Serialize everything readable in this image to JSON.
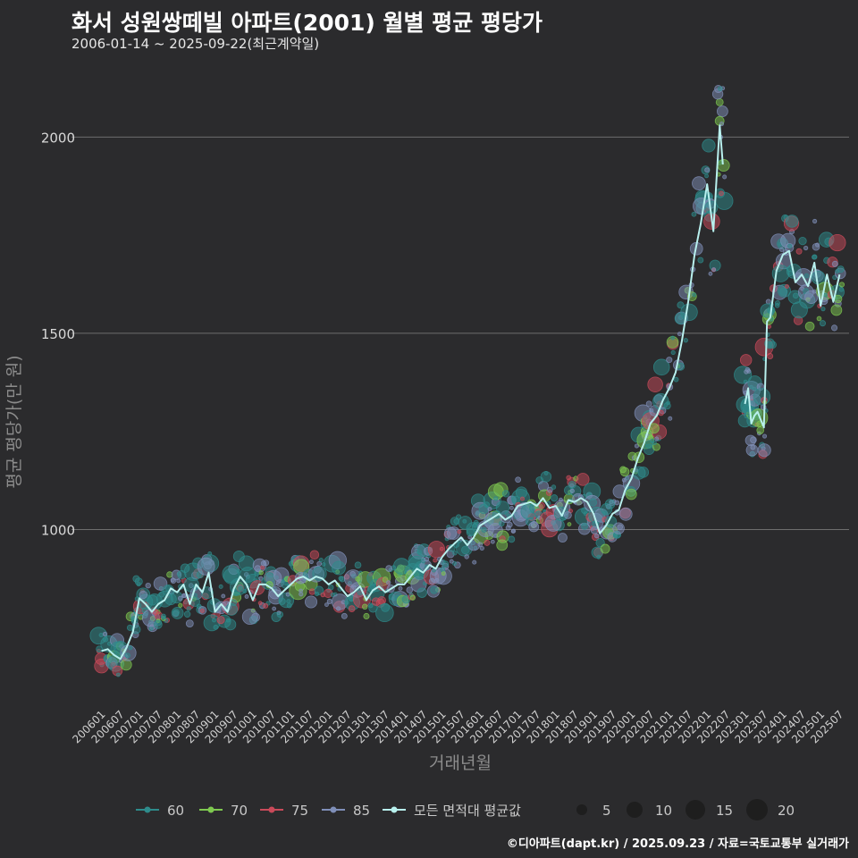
{
  "title": "화서 성원쌍떼빌 아파트(2001) 월별 평균 평당가",
  "subtitle": "2006-01-14 ~ 2025-09-22(최근계약일)",
  "footer": "©디아파트(dapt.kr) / 2025.09.23 / 자료=국토교통부 실거래가",
  "colors": {
    "s60": "#2e8b8b",
    "s70": "#7ec850",
    "s75": "#c94a5a",
    "s85": "#7f8fb8",
    "avg": "#b8f0ee"
  },
  "chart_data": {
    "type": "scatter",
    "xlabel": "거래년월",
    "ylabel": "평균 평당가(만 원)",
    "ylim": [
      550,
      2190
    ],
    "yticks": [
      1000,
      1500,
      2000
    ],
    "xlim": [
      "2005-12",
      "2025-10"
    ],
    "xticks": [
      "200601",
      "200607",
      "200701",
      "200707",
      "200801",
      "200807",
      "200901",
      "200907",
      "201001",
      "201007",
      "201101",
      "201107",
      "201201",
      "201207",
      "201301",
      "201307",
      "201401",
      "201407",
      "201501",
      "201507",
      "201601",
      "201607",
      "201701",
      "201707",
      "201801",
      "201807",
      "201901",
      "201907",
      "202001",
      "202007",
      "202101",
      "202107",
      "202201",
      "202207",
      "202301",
      "202307",
      "202401",
      "202407",
      "202501",
      "202507"
    ],
    "legend_series": [
      {
        "name": "60",
        "color_key": "s60"
      },
      {
        "name": "70",
        "color_key": "s70"
      },
      {
        "name": "75",
        "color_key": "s75"
      },
      {
        "name": "85",
        "color_key": "s85"
      },
      {
        "name": "모든 면적대 평균값",
        "color_key": "avg"
      }
    ],
    "size_legend": [
      5,
      10,
      15,
      20
    ],
    "average_line": [
      [
        "2006-01",
        690
      ],
      [
        "2006-03",
        695
      ],
      [
        "2006-05",
        680
      ],
      [
        "2006-07",
        670
      ],
      [
        "2006-09",
        700
      ],
      [
        "2006-11",
        740
      ],
      [
        "2007-01",
        825
      ],
      [
        "2007-03",
        810
      ],
      [
        "2007-05",
        790
      ],
      [
        "2007-07",
        810
      ],
      [
        "2007-09",
        820
      ],
      [
        "2007-11",
        850
      ],
      [
        "2008-01",
        840
      ],
      [
        "2008-03",
        860
      ],
      [
        "2008-05",
        810
      ],
      [
        "2008-07",
        860
      ],
      [
        "2008-09",
        840
      ],
      [
        "2008-11",
        890
      ],
      [
        "2009-01",
        790
      ],
      [
        "2009-03",
        810
      ],
      [
        "2009-05",
        790
      ],
      [
        "2009-07",
        850
      ],
      [
        "2009-09",
        880
      ],
      [
        "2009-11",
        860
      ],
      [
        "2010-01",
        820
      ],
      [
        "2010-03",
        860
      ],
      [
        "2010-05",
        860
      ],
      [
        "2010-07",
        850
      ],
      [
        "2010-09",
        830
      ],
      [
        "2010-11",
        845
      ],
      [
        "2011-01",
        860
      ],
      [
        "2011-03",
        875
      ],
      [
        "2011-05",
        880
      ],
      [
        "2011-07",
        870
      ],
      [
        "2011-09",
        880
      ],
      [
        "2011-11",
        875
      ],
      [
        "2012-01",
        860
      ],
      [
        "2012-03",
        870
      ],
      [
        "2012-05",
        850
      ],
      [
        "2012-07",
        830
      ],
      [
        "2012-09",
        840
      ],
      [
        "2012-11",
        855
      ],
      [
        "2013-01",
        820
      ],
      [
        "2013-03",
        845
      ],
      [
        "2013-05",
        855
      ],
      [
        "2013-07",
        840
      ],
      [
        "2013-09",
        850
      ],
      [
        "2013-11",
        860
      ],
      [
        "2014-01",
        860
      ],
      [
        "2014-03",
        880
      ],
      [
        "2014-05",
        900
      ],
      [
        "2014-07",
        890
      ],
      [
        "2014-09",
        910
      ],
      [
        "2014-11",
        900
      ],
      [
        "2015-01",
        930
      ],
      [
        "2015-03",
        950
      ],
      [
        "2015-05",
        965
      ],
      [
        "2015-07",
        980
      ],
      [
        "2015-09",
        960
      ],
      [
        "2015-11",
        980
      ],
      [
        "2016-01",
        1010
      ],
      [
        "2016-03",
        1020
      ],
      [
        "2016-05",
        1030
      ],
      [
        "2016-07",
        1040
      ],
      [
        "2016-09",
        1025
      ],
      [
        "2016-11",
        1035
      ],
      [
        "2017-01",
        1060
      ],
      [
        "2017-03",
        1065
      ],
      [
        "2017-05",
        1070
      ],
      [
        "2017-07",
        1060
      ],
      [
        "2017-09",
        1080
      ],
      [
        "2017-11",
        1055
      ],
      [
        "2018-01",
        1060
      ],
      [
        "2018-03",
        1035
      ],
      [
        "2018-05",
        1075
      ],
      [
        "2018-07",
        1070
      ],
      [
        "2018-09",
        1080
      ],
      [
        "2018-11",
        1070
      ],
      [
        "2019-01",
        1040
      ],
      [
        "2019-03",
        990
      ],
      [
        "2019-05",
        1010
      ],
      [
        "2019-07",
        1040
      ],
      [
        "2019-09",
        1050
      ],
      [
        "2019-11",
        1100
      ],
      [
        "2020-01",
        1130
      ],
      [
        "2020-03",
        1180
      ],
      [
        "2020-05",
        1220
      ],
      [
        "2020-07",
        1270
      ],
      [
        "2020-09",
        1290
      ],
      [
        "2020-11",
        1330
      ],
      [
        "2021-01",
        1360
      ],
      [
        "2021-03",
        1400
      ],
      [
        "2021-05",
        1480
      ],
      [
        "2021-07",
        1580
      ],
      [
        "2021-09",
        1700
      ],
      [
        "2021-11",
        1780
      ],
      [
        "2022-01",
        1880
      ],
      [
        "2022-03",
        1760
      ],
      [
        "2022-05",
        2030
      ],
      [
        "2022-06",
        1930
      ],
      [
        "2022-07",
        null
      ],
      [
        "2023-01",
        1320
      ],
      [
        "2023-02",
        1360
      ],
      [
        "2023-03",
        1270
      ],
      [
        "2023-04",
        1290
      ],
      [
        "2023-05",
        1300
      ],
      [
        "2023-07",
        1260
      ],
      [
        "2023-08",
        1530
      ],
      [
        "2023-09",
        1540
      ],
      [
        "2023-11",
        1660
      ],
      [
        "2024-01",
        1700
      ],
      [
        "2024-03",
        1710
      ],
      [
        "2024-05",
        1630
      ],
      [
        "2024-07",
        1650
      ],
      [
        "2024-09",
        1620
      ],
      [
        "2024-11",
        1680
      ],
      [
        "2025-01",
        1570
      ],
      [
        "2025-03",
        1650
      ],
      [
        "2025-05",
        1580
      ],
      [
        "2025-07",
        1650
      ]
    ]
  }
}
